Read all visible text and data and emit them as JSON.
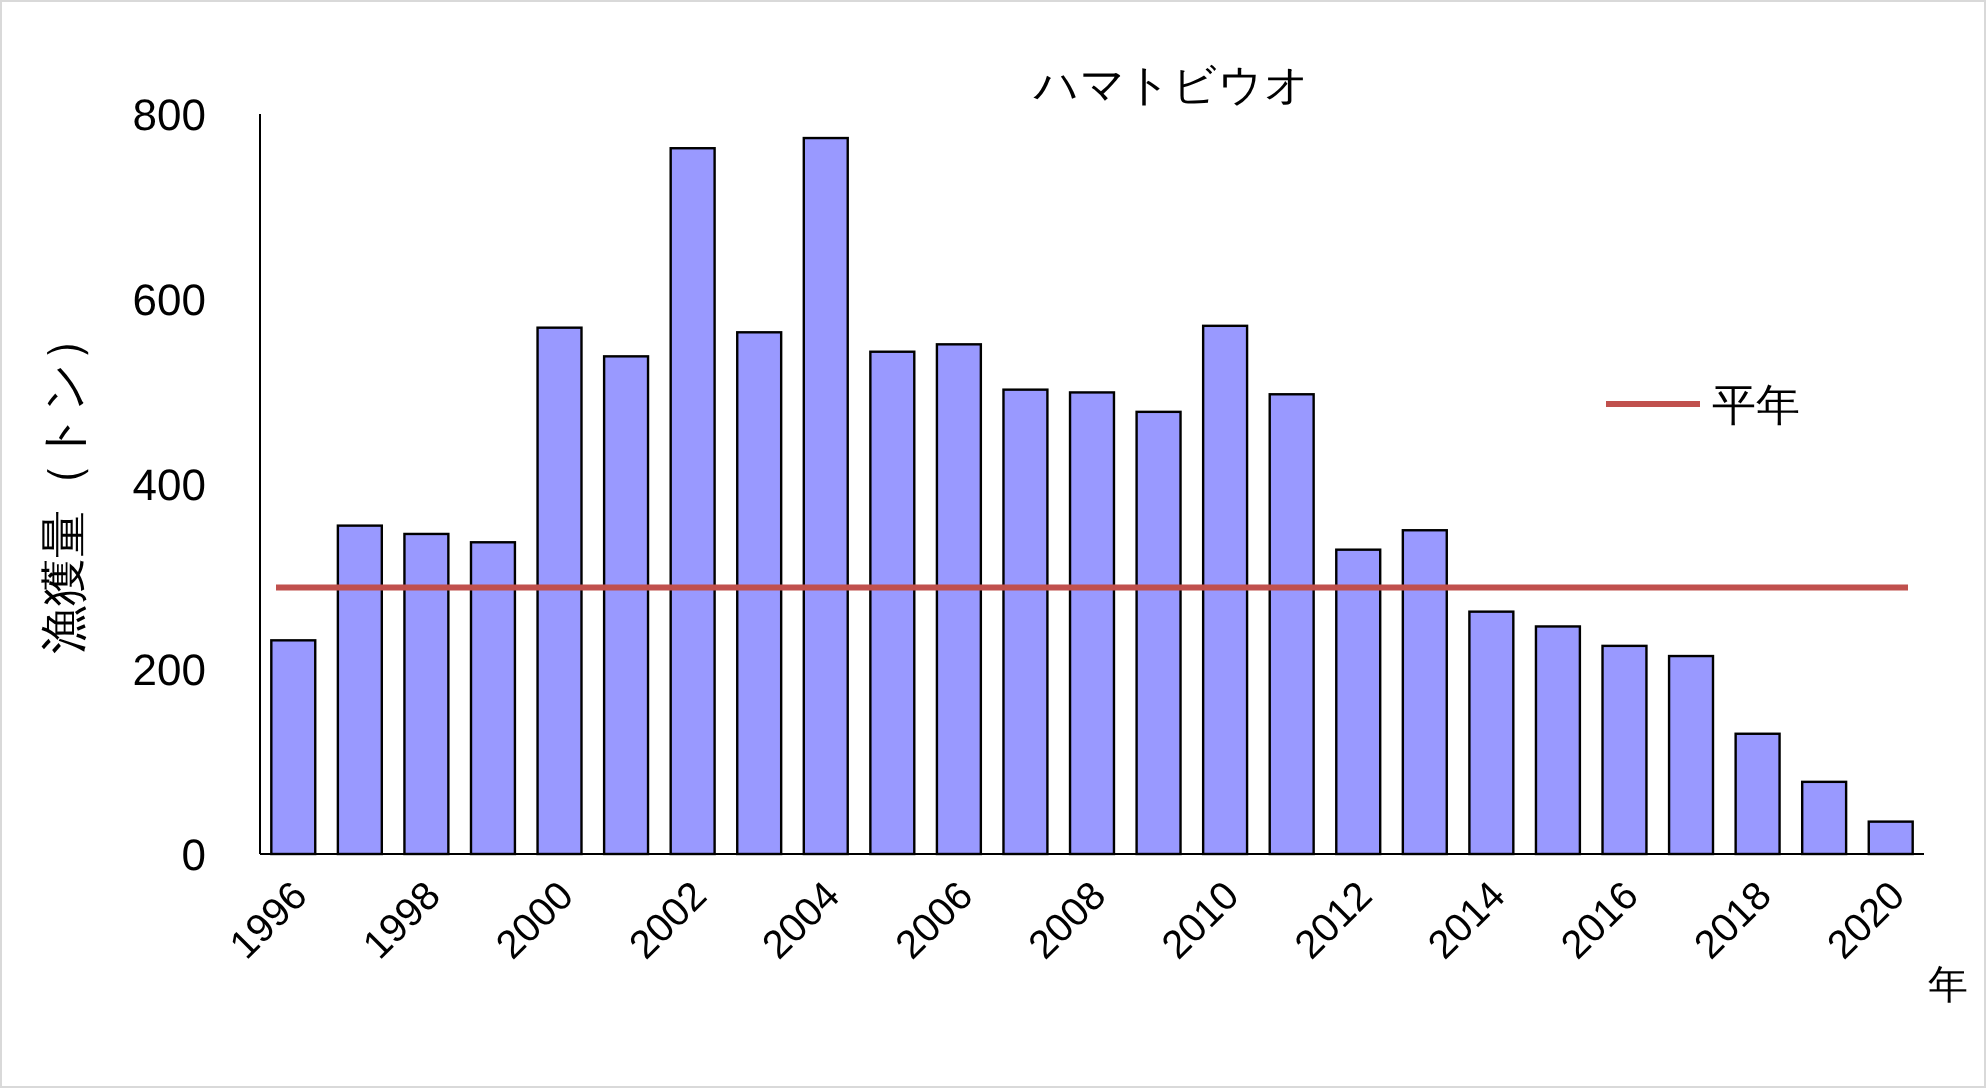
{
  "chart_data": {
    "type": "bar",
    "title": "ハマトビウオ",
    "ylabel": "漁獲量（トン）",
    "xlabel": "年",
    "categories": [
      "1996",
      null,
      "1998",
      null,
      "2000",
      null,
      "2002",
      null,
      "2004",
      null,
      "2006",
      null,
      "2008",
      null,
      "2010",
      null,
      "2012",
      null,
      "2014",
      null,
      "2016",
      null,
      "2018",
      null,
      "2020"
    ],
    "values": [
      231,
      355,
      346,
      337,
      569,
      538,
      763,
      564,
      774,
      543,
      551,
      502,
      499,
      478,
      571,
      497,
      329,
      350,
      262,
      246,
      225,
      214,
      130,
      78,
      35
    ],
    "color": "#9999ff",
    "ylim": [
      0,
      800
    ],
    "yticks": [
      0,
      200,
      400,
      600,
      800
    ],
    "ref_lines": [
      {
        "axis": "y",
        "value": 288,
        "label": "平年",
        "color": "#c0504d"
      }
    ],
    "legend": "right"
  }
}
